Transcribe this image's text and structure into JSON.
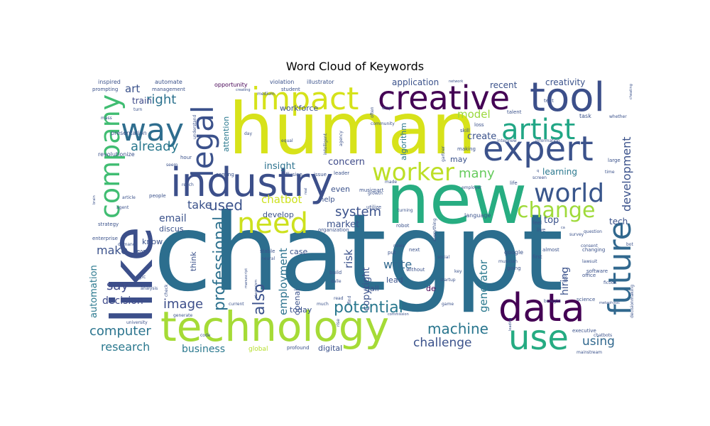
{
  "chart_data": {
    "type": "wordcloud",
    "title": "Word Cloud of Keywords",
    "colormap": "viridis",
    "background": "#ffffff",
    "words": [
      {
        "text": "chatgpt",
        "weight": 100,
        "color": "#2c6e8e"
      },
      {
        "text": "human",
        "weight": 84,
        "color": "#d7e21a"
      },
      {
        "text": "new",
        "weight": 80,
        "color": "#27ad81"
      },
      {
        "text": "like",
        "weight": 67,
        "color": "#3c4f8a"
      },
      {
        "text": "technology",
        "weight": 60,
        "color": "#a5db36"
      },
      {
        "text": "tool",
        "weight": 50,
        "color": "#3c4f8a"
      },
      {
        "text": "industry",
        "weight": 50,
        "color": "#3c4f8a"
      },
      {
        "text": "data",
        "weight": 47,
        "color": "#440154"
      },
      {
        "text": "expert",
        "weight": 44,
        "color": "#3b528b"
      },
      {
        "text": "creative",
        "weight": 42,
        "color": "#440154"
      },
      {
        "text": "use",
        "weight": 41,
        "color": "#25ab82"
      },
      {
        "text": "future",
        "weight": 40,
        "color": "#31688e"
      },
      {
        "text": "impact",
        "weight": 40,
        "color": "#d5e21a"
      },
      {
        "text": "way",
        "weight": 39,
        "color": "#2e6d8e"
      },
      {
        "text": "artist",
        "weight": 37,
        "color": "#21a685"
      },
      {
        "text": "legal",
        "weight": 37,
        "color": "#3b518b"
      },
      {
        "text": "need",
        "weight": 36,
        "color": "#cde11d"
      },
      {
        "text": "company",
        "weight": 35,
        "color": "#40bd72"
      },
      {
        "text": "worker",
        "weight": 34,
        "color": "#bddf26"
      },
      {
        "text": "world",
        "weight": 34,
        "color": "#39568c"
      },
      {
        "text": "change",
        "weight": 30,
        "color": "#9fda3a"
      },
      {
        "text": "potential",
        "weight": 22,
        "color": "#2a788e"
      },
      {
        "text": "professional",
        "weight": 22,
        "color": "#2d718e"
      },
      {
        "text": "also",
        "weight": 22,
        "color": "#3b518b"
      },
      {
        "text": "machine",
        "weight": 20,
        "color": "#2a768e"
      },
      {
        "text": "used",
        "weight": 20,
        "color": "#3b528b"
      },
      {
        "text": "system",
        "weight": 18,
        "color": "#3b528b"
      },
      {
        "text": "image",
        "weight": 18,
        "color": "#3d4e8a"
      },
      {
        "text": "computer",
        "weight": 18,
        "color": "#2b748e"
      },
      {
        "text": "right",
        "weight": 18,
        "color": "#2c728e"
      },
      {
        "text": "already",
        "weight": 18,
        "color": "#2a788e"
      },
      {
        "text": "say",
        "weight": 18,
        "color": "#3e4a89"
      },
      {
        "text": "many",
        "weight": 18,
        "color": "#66cb5d"
      },
      {
        "text": "using",
        "weight": 17,
        "color": "#31688e"
      },
      {
        "text": "challenge",
        "weight": 17,
        "color": "#3b528b"
      },
      {
        "text": "research",
        "weight": 16,
        "color": "#2a788e"
      },
      {
        "text": "development",
        "weight": 16,
        "color": "#3b528b"
      },
      {
        "text": "take",
        "weight": 16,
        "color": "#3b528b"
      },
      {
        "text": "write",
        "weight": 16,
        "color": "#31688e"
      },
      {
        "text": "make",
        "weight": 16,
        "color": "#3b528b"
      },
      {
        "text": "chatbot",
        "weight": 15,
        "color": "#cde11d"
      },
      {
        "text": "model",
        "weight": 15,
        "color": "#9bd93c"
      },
      {
        "text": "art",
        "weight": 15,
        "color": "#3b528b"
      },
      {
        "text": "generator",
        "weight": 15,
        "color": "#2a788e"
      },
      {
        "text": "risk",
        "weight": 15,
        "color": "#3b528b"
      },
      {
        "text": "employment",
        "weight": 15,
        "color": "#2c728e"
      },
      {
        "text": "decision",
        "weight": 14,
        "color": "#3e4a89"
      },
      {
        "text": "email",
        "weight": 14,
        "color": "#3b528b"
      },
      {
        "text": "hiring",
        "weight": 14,
        "color": "#3b528b"
      },
      {
        "text": "business",
        "weight": 14,
        "color": "#2a788e"
      },
      {
        "text": "create",
        "weight": 13,
        "color": "#3b528b"
      },
      {
        "text": "concern",
        "weight": 13,
        "color": "#3e4a89"
      },
      {
        "text": "market",
        "weight": 13,
        "color": "#3b528b"
      },
      {
        "text": "automation",
        "weight": 13,
        "color": "#2a788e"
      },
      {
        "text": "insight",
        "weight": 13,
        "color": "#2c728e"
      },
      {
        "text": "copyright",
        "weight": 13,
        "color": "#3b528b"
      },
      {
        "text": "top",
        "weight": 13,
        "color": "#3b528b"
      },
      {
        "text": "tech",
        "weight": 12,
        "color": "#3b528b"
      },
      {
        "text": "learning",
        "weight": 12,
        "color": "#2a788e"
      },
      {
        "text": "application",
        "weight": 12,
        "color": "#3b528b"
      },
      {
        "text": "creativity",
        "weight": 12,
        "color": "#3b528b"
      },
      {
        "text": "recent",
        "weight": 12,
        "color": "#3b528b"
      },
      {
        "text": "train",
        "weight": 12,
        "color": "#3e4a89"
      },
      {
        "text": "attention",
        "weight": 11,
        "color": "#2a788e"
      },
      {
        "text": "lead",
        "weight": 11,
        "color": "#3b528b"
      },
      {
        "text": "today",
        "weight": 11,
        "color": "#3b528b"
      },
      {
        "text": "develop",
        "weight": 11,
        "color": "#3b528b"
      },
      {
        "text": "even",
        "weight": 11,
        "color": "#3b528b"
      },
      {
        "text": "digital",
        "weight": 11,
        "color": "#3b528b"
      },
      {
        "text": "openai",
        "weight": 11,
        "color": "#3b528b"
      },
      {
        "text": "algorithm",
        "weight": 11,
        "color": "#2a788e"
      },
      {
        "text": "case",
        "weight": 11,
        "color": "#3b528b"
      },
      {
        "text": "workforce",
        "weight": 11,
        "color": "#3b528b"
      },
      {
        "text": "think",
        "weight": 11,
        "color": "#3b528b"
      },
      {
        "text": "dall",
        "weight": 11,
        "color": "#3b528b"
      },
      {
        "text": "know",
        "weight": 11,
        "color": "#3b528b"
      },
      {
        "text": "discus",
        "weight": 11,
        "color": "#3b528b"
      },
      {
        "text": "de",
        "weight": 11,
        "color": "#440154"
      },
      {
        "text": "may",
        "weight": 11,
        "color": "#3b528b"
      },
      {
        "text": "help",
        "weight": 10,
        "color": "#3b528b"
      },
      {
        "text": "global",
        "weight": 9,
        "color": "#b5de2b"
      },
      {
        "text": "opportunity",
        "weight": 8,
        "color": "#440154"
      },
      {
        "text": "violation",
        "weight": 8,
        "color": "#3b528b"
      },
      {
        "text": "illustrator",
        "weight": 8,
        "color": "#3b528b"
      },
      {
        "text": "automate",
        "weight": 8,
        "color": "#3b528b"
      },
      {
        "text": "inspired",
        "weight": 8,
        "color": "#3b528b"
      },
      {
        "text": "prompting",
        "weight": 7,
        "color": "#3b528b"
      },
      {
        "text": "management",
        "weight": 7,
        "color": "#3b528b"
      },
      {
        "text": "presentation",
        "weight": 8,
        "color": "#3b528b"
      },
      {
        "text": "revolutionize",
        "weight": 8,
        "color": "#3b528b"
      },
      {
        "text": "hour",
        "weight": 7,
        "color": "#3b528b"
      },
      {
        "text": "coming",
        "weight": 7,
        "color": "#3b528b"
      },
      {
        "text": "diffusion",
        "weight": 7,
        "color": "#3b528b"
      },
      {
        "text": "leader",
        "weight": 7,
        "color": "#3b528b"
      },
      {
        "text": "issue",
        "weight": 7,
        "color": "#3b528b"
      },
      {
        "text": "part",
        "weight": 7,
        "color": "#3b528b"
      },
      {
        "text": "music",
        "weight": 7,
        "color": "#3b528b"
      },
      {
        "text": "gartner",
        "weight": 6,
        "color": "#3b528b"
      },
      {
        "text": "loss",
        "weight": 7,
        "color": "#3b528b"
      },
      {
        "text": "skill",
        "weight": 7,
        "color": "#3b528b"
      },
      {
        "text": "making",
        "weight": 7,
        "color": "#3b528b"
      },
      {
        "text": "talent",
        "weight": 7,
        "color": "#3b528b"
      },
      {
        "text": "task",
        "weight": 8,
        "color": "#3b528b"
      },
      {
        "text": "text",
        "weight": 7,
        "color": "#3b528b"
      },
      {
        "text": "interview",
        "weight": 6,
        "color": "#3b528b"
      },
      {
        "text": "information",
        "weight": 6,
        "color": "#3b528b"
      },
      {
        "text": "employer",
        "weight": 6,
        "color": "#3b528b"
      },
      {
        "text": "language",
        "weight": 8,
        "color": "#3b528b"
      },
      {
        "text": "screen",
        "weight": 6,
        "color": "#3b528b"
      },
      {
        "text": "life",
        "weight": 7,
        "color": "#3b528b"
      },
      {
        "text": "time",
        "weight": 6,
        "color": "#3b528b"
      },
      {
        "text": "large",
        "weight": 7,
        "color": "#3b528b"
      },
      {
        "text": "survey",
        "weight": 6,
        "color": "#3b528b"
      },
      {
        "text": "feel",
        "weight": 7,
        "color": "#3b528b"
      },
      {
        "text": "live",
        "weight": 7,
        "color": "#3b528b"
      },
      {
        "text": "consent",
        "weight": 6,
        "color": "#3b528b"
      },
      {
        "text": "question",
        "weight": 6,
        "color": "#3b528b"
      },
      {
        "text": "almost",
        "weight": 7,
        "color": "#3b528b"
      },
      {
        "text": "changing",
        "weight": 7,
        "color": "#3b528b"
      },
      {
        "text": "google",
        "weight": 8,
        "color": "#3b528b"
      },
      {
        "text": "musician",
        "weight": 6,
        "color": "#3b528b"
      },
      {
        "text": "going",
        "weight": 7,
        "color": "#3b528b"
      },
      {
        "text": "first",
        "weight": 7,
        "color": "#3b528b"
      },
      {
        "text": "office",
        "weight": 7,
        "color": "#3b528b"
      },
      {
        "text": "lawsuit",
        "weight": 6,
        "color": "#3b528b"
      },
      {
        "text": "software",
        "weight": 7,
        "color": "#3b528b"
      },
      {
        "text": "fiction",
        "weight": 6,
        "color": "#3b528b"
      },
      {
        "text": "sport",
        "weight": 6,
        "color": "#3b528b"
      },
      {
        "text": "science",
        "weight": 7,
        "color": "#3b528b"
      },
      {
        "text": "brought",
        "weight": 6,
        "color": "#3b528b"
      },
      {
        "text": "metaphysic",
        "weight": 5,
        "color": "#3b528b"
      },
      {
        "text": "executive",
        "weight": 7,
        "color": "#3b528b"
      },
      {
        "text": "chatbots",
        "weight": 6,
        "color": "#3b528b"
      },
      {
        "text": "mainstream",
        "weight": 6,
        "color": "#3b528b"
      },
      {
        "text": "decisionmaking",
        "weight": 6,
        "color": "#3b528b"
      },
      {
        "text": "bot",
        "weight": 6,
        "color": "#3b528b"
      },
      {
        "text": "cheating",
        "weight": 5,
        "color": "#3b528b"
      },
      {
        "text": "whether",
        "weight": 6,
        "color": "#3b528b"
      },
      {
        "text": "startup",
        "weight": 6,
        "color": "#3b528b"
      },
      {
        "text": "game",
        "weight": 6,
        "color": "#3b528b"
      },
      {
        "text": "social",
        "weight": 6,
        "color": "#3b528b"
      },
      {
        "text": "next",
        "weight": 7,
        "color": "#3b528b"
      },
      {
        "text": "put",
        "weight": 7,
        "color": "#3b528b"
      },
      {
        "text": "news",
        "weight": 6,
        "color": "#3b528b"
      },
      {
        "text": "without",
        "weight": 7,
        "color": "#3b528b"
      },
      {
        "text": "robot",
        "weight": 7,
        "color": "#3b528b"
      },
      {
        "text": "turning",
        "weight": 6,
        "color": "#3b528b"
      },
      {
        "text": "utilize",
        "weight": 7,
        "color": "#3b528b"
      },
      {
        "text": "growth",
        "weight": 6,
        "color": "#3b528b"
      },
      {
        "text": "made",
        "weight": 6,
        "color": "#3b528b"
      },
      {
        "text": "organization",
        "weight": 7,
        "color": "#3b528b"
      },
      {
        "text": "build",
        "weight": 7,
        "color": "#3b528b"
      },
      {
        "text": "dalle",
        "weight": 6,
        "color": "#3b528b"
      },
      {
        "text": "read",
        "weight": 6,
        "color": "#3b528b"
      },
      {
        "text": "much",
        "weight": 6,
        "color": "#3b528b"
      },
      {
        "text": "rise",
        "weight": 6,
        "color": "#3b528b"
      },
      {
        "text": "profound",
        "weight": 7,
        "color": "#3b528b"
      },
      {
        "text": "stable",
        "weight": 7,
        "color": "#3b528b"
      },
      {
        "text": "neural",
        "weight": 6,
        "color": "#3b528b"
      },
      {
        "text": "manuscript",
        "weight": 5,
        "color": "#3b528b"
      },
      {
        "text": "plagiarism",
        "weight": 5,
        "color": "#3b528b"
      },
      {
        "text": "current",
        "weight": 6,
        "color": "#3b528b"
      },
      {
        "text": "commission",
        "weight": 5,
        "color": "#3b528b"
      },
      {
        "text": "leading",
        "weight": 5,
        "color": "#3b528b"
      },
      {
        "text": "key",
        "weight": 6,
        "color": "#3b528b"
      },
      {
        "text": "everything",
        "weight": 6,
        "color": "#3b528b"
      },
      {
        "text": "find",
        "weight": 6,
        "color": "#3b528b"
      },
      {
        "text": "often",
        "weight": 6,
        "color": "#3b528b"
      },
      {
        "text": "community",
        "weight": 6,
        "color": "#3b528b"
      },
      {
        "text": "drop",
        "weight": 6,
        "color": "#3b528b"
      },
      {
        "text": "student",
        "weight": 7,
        "color": "#3b528b"
      },
      {
        "text": "medium",
        "weight": 6,
        "color": "#3b528b"
      },
      {
        "text": "creating",
        "weight": 5,
        "color": "#3b528b"
      },
      {
        "text": "understand",
        "weight": 6,
        "color": "#3b528b"
      },
      {
        "text": "day",
        "weight": 6,
        "color": "#3b528b"
      },
      {
        "text": "equal",
        "weight": 6,
        "color": "#3b528b"
      },
      {
        "text": "intelligent",
        "weight": 6,
        "color": "#3b528b"
      },
      {
        "text": "agency",
        "weight": 6,
        "color": "#3b528b"
      },
      {
        "text": "network",
        "weight": 5,
        "color": "#3b528b"
      },
      {
        "text": "turn",
        "weight": 6,
        "color": "#3b528b"
      },
      {
        "text": "mass",
        "weight": 6,
        "color": "#3b528b"
      },
      {
        "text": "seem",
        "weight": 6,
        "color": "#3b528b"
      },
      {
        "text": "reach",
        "weight": 6,
        "color": "#3b528b"
      },
      {
        "text": "brain",
        "weight": 5,
        "color": "#3b528b"
      },
      {
        "text": "article",
        "weight": 6,
        "color": "#3b528b"
      },
      {
        "text": "people",
        "weight": 7,
        "color": "#3b528b"
      },
      {
        "text": "agent",
        "weight": 6,
        "color": "#3b528b"
      },
      {
        "text": "strategy",
        "weight": 7,
        "color": "#3b528b"
      },
      {
        "text": "enterprise",
        "weight": 7,
        "color": "#3b528b"
      },
      {
        "text": "demand",
        "weight": 6,
        "color": "#3b528b"
      },
      {
        "text": "team",
        "weight": 7,
        "color": "#3b528b"
      },
      {
        "text": "magic",
        "weight": 7,
        "color": "#3b528b"
      },
      {
        "text": "analysis",
        "weight": 6,
        "color": "#3b528b"
      },
      {
        "text": "check",
        "weight": 6,
        "color": "#3b528b"
      },
      {
        "text": "generate",
        "weight": 6,
        "color": "#3b528b"
      },
      {
        "text": "university",
        "weight": 6,
        "color": "#3b528b"
      },
      {
        "text": "code",
        "weight": 6,
        "color": "#3b528b"
      },
      {
        "text": "ca",
        "weight": 5,
        "color": "#3b528b"
      },
      {
        "text": "q",
        "weight": 5,
        "color": "#3b528b"
      },
      {
        "text": "real",
        "weight": 5,
        "color": "#3b528b"
      }
    ]
  }
}
